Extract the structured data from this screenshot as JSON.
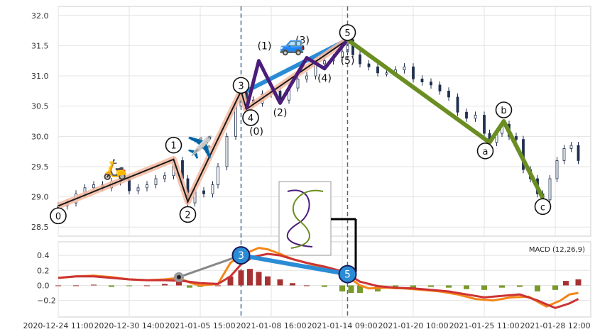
{
  "chart_data": [
    {
      "type": "candlestick",
      "title": "",
      "xlabel": "",
      "ylabel": "",
      "ylim": [
        28.35,
        32.15
      ],
      "yticks": [
        "28.5",
        "29.0",
        "29.5",
        "30.0",
        "30.5",
        "31.0",
        "31.5",
        "32.0"
      ],
      "x_tick_labels": [
        "2020-12-24 11:00",
        "2020-12-30 14:00",
        "2021-01-05 15:00",
        "2021-01-08 16:00",
        "2021-01-14 09:00",
        "2021-01-20 10:00",
        "2021-01-25 11:00",
        "2021-01-28 12:00"
      ],
      "grid": true,
      "close_series": [
        [
          0,
          28.85
        ],
        [
          5,
          28.9
        ],
        [
          10,
          29.05
        ],
        [
          15,
          29.15
        ],
        [
          20,
          29.2
        ],
        [
          25,
          29.15
        ],
        [
          30,
          29.25
        ],
        [
          35,
          29.3
        ],
        [
          40,
          29.1
        ],
        [
          45,
          29.15
        ],
        [
          50,
          29.2
        ],
        [
          55,
          29.3
        ],
        [
          60,
          29.35
        ],
        [
          65,
          29.6
        ],
        [
          70,
          29.3
        ],
        [
          73,
          28.9
        ],
        [
          77,
          29.1
        ],
        [
          82,
          29.05
        ],
        [
          87,
          29.2
        ],
        [
          90,
          29.5
        ],
        [
          95,
          30.0
        ],
        [
          100,
          30.5
        ],
        [
          103,
          30.75
        ],
        [
          106,
          30.6
        ],
        [
          110,
          30.55
        ],
        [
          115,
          30.7
        ],
        [
          120,
          30.75
        ],
        [
          125,
          30.6
        ],
        [
          130,
          30.8
        ],
        [
          135,
          30.95
        ],
        [
          140,
          31.0
        ],
        [
          145,
          31.2
        ],
        [
          150,
          31.25
        ],
        [
          155,
          31.3
        ],
        [
          160,
          31.4
        ],
        [
          163,
          31.6
        ],
        [
          166,
          31.35
        ],
        [
          170,
          31.2
        ],
        [
          175,
          31.15
        ],
        [
          180,
          31.05
        ],
        [
          185,
          31.05
        ],
        [
          190,
          31.1
        ],
        [
          195,
          31.15
        ],
        [
          200,
          30.95
        ],
        [
          205,
          30.9
        ],
        [
          210,
          30.85
        ],
        [
          215,
          30.75
        ],
        [
          220,
          30.65
        ],
        [
          225,
          30.4
        ],
        [
          230,
          30.3
        ],
        [
          235,
          30.35
        ],
        [
          240,
          30.05
        ],
        [
          243,
          29.9
        ],
        [
          247,
          30.05
        ],
        [
          250,
          30.2
        ],
        [
          254,
          30.0
        ],
        [
          258,
          29.95
        ],
        [
          262,
          29.45
        ],
        [
          266,
          29.3
        ],
        [
          270,
          29.05
        ],
        [
          273,
          28.95
        ],
        [
          277,
          29.3
        ],
        [
          281,
          29.6
        ],
        [
          285,
          29.8
        ],
        [
          289,
          29.85
        ],
        [
          293,
          29.6
        ]
      ],
      "annotations": {
        "primary_wave": {
          "labels": [
            "0",
            "1",
            "2",
            "3",
            "4",
            "5"
          ],
          "points": [
            [
              0,
              28.85
            ],
            [
              65,
              29.62
            ],
            [
              73,
              28.92
            ],
            [
              103,
              30.75
            ],
            [
              106,
              30.45
            ],
            [
              163,
              31.6
            ]
          ]
        },
        "sub_wave": {
          "labels": [
            "(0)",
            "(1)",
            "(2)",
            "(3)",
            "(4)",
            "(5)"
          ],
          "points": [
            [
              106,
              30.45
            ],
            [
              113,
              31.25
            ],
            [
              125,
              30.55
            ],
            [
              140,
              31.3
            ],
            [
              150,
              31.12
            ],
            [
              163,
              31.6
            ]
          ]
        },
        "correction_wave": {
          "labels": [
            "a",
            "b",
            "c"
          ],
          "points": [
            [
              163,
              31.6
            ],
            [
              243,
              29.9
            ],
            [
              251,
              30.25
            ],
            [
              273,
              28.98
            ]
          ]
        },
        "trend_line": [
          [
            106,
            30.75
          ],
          [
            163,
            31.6
          ]
        ],
        "vertical_markers": [
          103,
          163
        ]
      }
    },
    {
      "type": "line",
      "legend": "MACD (12,26,9)",
      "ylim": [
        -0.42,
        0.58
      ],
      "yticks": [
        "−0.2",
        "0.0",
        "0.2",
        "0.4"
      ],
      "series": [
        {
          "name": "",
          "color": "#f58518",
          "values": [
            [
              0,
              0.1
            ],
            [
              10,
              0.12
            ],
            [
              20,
              0.13
            ],
            [
              30,
              0.11
            ],
            [
              40,
              0.08
            ],
            [
              50,
              0.07
            ],
            [
              60,
              0.08
            ],
            [
              68,
              0.1
            ],
            [
              75,
              0.03
            ],
            [
              80,
              0.0
            ],
            [
              90,
              0.02
            ],
            [
              97,
              0.3
            ],
            [
              103,
              0.4
            ],
            [
              108,
              0.45
            ],
            [
              113,
              0.5
            ],
            [
              118,
              0.48
            ],
            [
              125,
              0.42
            ],
            [
              132,
              0.35
            ],
            [
              140,
              0.3
            ],
            [
              150,
              0.22
            ],
            [
              158,
              0.16
            ],
            [
              163,
              0.12
            ],
            [
              170,
              0.0
            ],
            [
              175,
              -0.04
            ],
            [
              185,
              -0.03
            ],
            [
              195,
              -0.04
            ],
            [
              205,
              -0.06
            ],
            [
              215,
              -0.08
            ],
            [
              225,
              -0.12
            ],
            [
              235,
              -0.18
            ],
            [
              245,
              -0.2
            ],
            [
              255,
              -0.16
            ],
            [
              265,
              -0.15
            ],
            [
              275,
              -0.28
            ],
            [
              283,
              -0.2
            ],
            [
              288,
              -0.12
            ],
            [
              293,
              -0.1
            ]
          ]
        },
        {
          "name": "",
          "color": "#cc3333",
          "values": [
            [
              0,
              0.1
            ],
            [
              10,
              0.12
            ],
            [
              20,
              0.12
            ],
            [
              30,
              0.1
            ],
            [
              40,
              0.08
            ],
            [
              50,
              0.07
            ],
            [
              60,
              0.07
            ],
            [
              70,
              0.06
            ],
            [
              80,
              0.03
            ],
            [
              90,
              0.02
            ],
            [
              97,
              0.12
            ],
            [
              103,
              0.28
            ],
            [
              110,
              0.38
            ],
            [
              118,
              0.42
            ],
            [
              125,
              0.4
            ],
            [
              132,
              0.35
            ],
            [
              140,
              0.3
            ],
            [
              150,
              0.25
            ],
            [
              158,
              0.2
            ],
            [
              163,
              0.15
            ],
            [
              170,
              0.05
            ],
            [
              180,
              -0.01
            ],
            [
              190,
              -0.03
            ],
            [
              200,
              -0.04
            ],
            [
              210,
              -0.06
            ],
            [
              220,
              -0.08
            ],
            [
              230,
              -0.12
            ],
            [
              240,
              -0.16
            ],
            [
              250,
              -0.14
            ],
            [
              260,
              -0.12
            ],
            [
              270,
              -0.2
            ],
            [
              280,
              -0.3
            ],
            [
              288,
              -0.24
            ],
            [
              293,
              -0.18
            ]
          ]
        }
      ],
      "histogram": [
        [
          0,
          0.0
        ],
        [
          10,
          0.0
        ],
        [
          20,
          0.01
        ],
        [
          30,
          -0.02
        ],
        [
          40,
          -0.01
        ],
        [
          50,
          0.0
        ],
        [
          60,
          0.02
        ],
        [
          68,
          0.05
        ],
        [
          74,
          -0.03
        ],
        [
          80,
          -0.02
        ],
        [
          90,
          0.0
        ],
        [
          97,
          0.12
        ],
        [
          103,
          0.2
        ],
        [
          108,
          0.22
        ],
        [
          113,
          0.18
        ],
        [
          118,
          0.12
        ],
        [
          125,
          0.08
        ],
        [
          132,
          0.03
        ],
        [
          140,
          0.0
        ],
        [
          150,
          -0.02
        ],
        [
          160,
          -0.08
        ],
        [
          165,
          -0.1
        ],
        [
          170,
          -0.1
        ],
        [
          180,
          -0.08
        ],
        [
          190,
          -0.05
        ],
        [
          200,
          -0.04
        ],
        [
          210,
          -0.02
        ],
        [
          220,
          -0.03
        ],
        [
          230,
          -0.05
        ],
        [
          240,
          -0.06
        ],
        [
          250,
          -0.03
        ],
        [
          260,
          -0.02
        ],
        [
          270,
          -0.08
        ],
        [
          280,
          -0.06
        ],
        [
          286,
          0.06
        ],
        [
          293,
          0.08
        ]
      ],
      "annotations": {
        "markers": [
          {
            "label": "3",
            "x": 103,
            "y": 0.4
          },
          {
            "label": "5",
            "x": 163,
            "y": 0.15
          }
        ],
        "start_marker": [
          68,
          0.11
        ]
      }
    }
  ],
  "labels": {
    "macd_legend": "MACD (12,26,9)"
  },
  "colors": {
    "primary": "#1a1a1a",
    "primary_glow": "#f4b8a0",
    "sub": "#4b1d7a",
    "correction": "#6b8e23",
    "trend": "#2b8cd6",
    "marker": "#4b6a8a",
    "up": "#1f2f4f"
  }
}
